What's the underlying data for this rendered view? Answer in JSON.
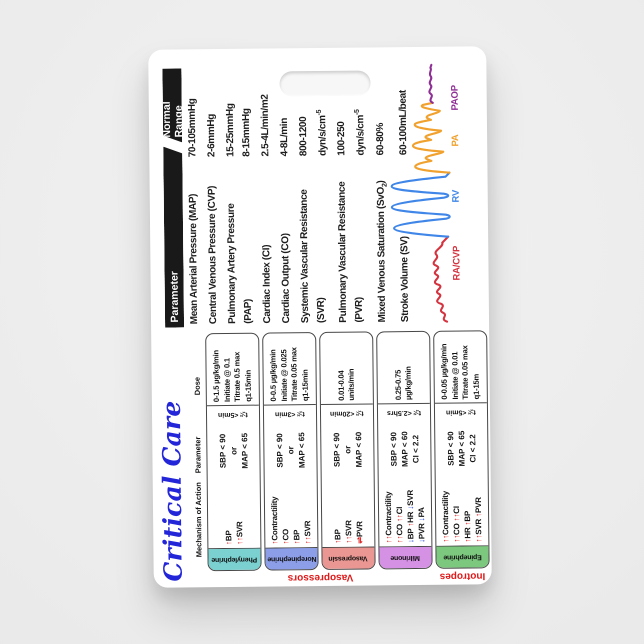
{
  "card": {
    "title": "Critical Care"
  },
  "drug_table": {
    "headers": {
      "mechanism": "Mechanism of Action",
      "parameter": "Parameter",
      "dose": "Dose"
    },
    "groups": {
      "vasopressors": "Vasopressors",
      "inotropes": "Inotropes"
    },
    "drugs": [
      {
        "name": "Phenylephrine",
        "color": "#7bd0d0",
        "mechanism": [
          [
            [
              "↑",
              "r"
            ],
            [
              "BP",
              "k"
            ]
          ],
          [
            [
              "↑↑",
              "r"
            ],
            [
              "SVR",
              "k"
            ]
          ]
        ],
        "parameter": [
          "SBP < 90",
          "or",
          "MAP < 65"
        ],
        "half_life": "t½<5min",
        "dose": [
          "0-1.5 µg/kg/min",
          "Initiate @ 0.1",
          "Titrate 0.5 max",
          "q1-15min"
        ]
      },
      {
        "name": "Norepinephrine",
        "color": "#8d9ee8",
        "mechanism": [
          [
            [
              "↑",
              "r"
            ],
            [
              "Contractility",
              "k"
            ]
          ],
          [
            [
              "↑",
              "r"
            ],
            [
              "CO",
              "k"
            ]
          ],
          [
            [
              "↑",
              "r"
            ],
            [
              "BP",
              "k"
            ]
          ],
          [
            [
              "↑↑",
              "r"
            ],
            [
              "SVR",
              "k"
            ]
          ]
        ],
        "parameter": [
          "SBP < 90",
          "or",
          "MAP < 65"
        ],
        "half_life": "t½<3min",
        "dose": [
          "0-0.5 µg/kg/min",
          "Initiate @ 0.025",
          "Titrate 0.05 max",
          "q1-15min"
        ]
      },
      {
        "name": "Vasopressin",
        "color": "#ea9793",
        "mechanism": [
          [
            [
              "↑",
              "r"
            ],
            [
              "BP",
              "k"
            ]
          ],
          [
            [
              "↑↑",
              "r"
            ],
            [
              "SVR",
              "k"
            ]
          ],
          [
            [
              "⇌",
              "r"
            ],
            [
              "PVR",
              "k"
            ]
          ]
        ],
        "parameter": [
          "SBP < 90",
          "or",
          "MAP < 60"
        ],
        "half_life": "t½<20min",
        "dose": [
          "0.01-0.04",
          "units/min"
        ]
      },
      {
        "name": "Milrinone",
        "color": "#d591e4",
        "mechanism": [
          [
            [
              "↑↑",
              "r"
            ],
            [
              "Contractility",
              "k"
            ]
          ],
          [
            [
              "↑↑",
              "r"
            ],
            [
              "CO ",
              "k"
            ],
            [
              "↑↑",
              "r"
            ],
            [
              "CI",
              "k"
            ]
          ],
          [
            [
              "↓",
              "b"
            ],
            [
              "BP ",
              "k"
            ],
            [
              "↑",
              "r"
            ],
            [
              "HR ",
              "k"
            ],
            [
              "↓",
              "b"
            ],
            [
              "SVR",
              "k"
            ]
          ],
          [
            [
              "↓",
              "b"
            ],
            [
              "PVR ",
              "k"
            ],
            [
              "↓",
              "b"
            ],
            [
              "PA",
              "k"
            ]
          ]
        ],
        "parameter": [
          "SBP < 90",
          "MAP < 60",
          "CI < 2.2"
        ],
        "half_life": "t½<2.5hrs",
        "dose": [
          "0.25-0.75",
          "µg/kg/min"
        ]
      },
      {
        "name": "Epinephrine",
        "color": "#7dc87f",
        "mechanism": [
          [
            [
              "↑↑",
              "r"
            ],
            [
              "Contractility",
              "k"
            ]
          ],
          [
            [
              "↑↑",
              "r"
            ],
            [
              "CO ",
              "k"
            ],
            [
              "↑↑",
              "r"
            ],
            [
              "CI",
              "k"
            ]
          ],
          [
            [
              "↑",
              "r"
            ],
            [
              "HR ",
              "k"
            ],
            [
              "↑",
              "r"
            ],
            [
              "BP",
              "k"
            ]
          ],
          [
            [
              "↑↑",
              "r"
            ],
            [
              "SVR ",
              "k"
            ],
            [
              "↑",
              "r"
            ],
            [
              "PVR",
              "k"
            ]
          ]
        ],
        "parameter": [
          "SBP < 90",
          "MAP < 65",
          "CI < 2.2"
        ],
        "half_life": "t½<5min",
        "dose": [
          "0-0.05 µg/kg/min",
          "Initiate @ 0.01",
          "Titrate 0.05 max",
          "q1-15m"
        ]
      }
    ]
  },
  "param_table": {
    "headers": {
      "parameter": "Parameter",
      "range": "Normal Range"
    },
    "rows": [
      {
        "parameter": [
          "Mean Arterial Pressure (MAP)"
        ],
        "range": [
          "70-105mmHg"
        ]
      },
      {
        "parameter": [
          "Central Venous Pressure (CVP)"
        ],
        "range": [
          "2-6mmHg"
        ]
      },
      {
        "parameter": [
          "Pulmonary Artery Pressure",
          "(PAP)"
        ],
        "range": [
          "15-25mmHg",
          "8-15mmHg"
        ]
      },
      {
        "parameter": [
          "Cardiac Index (CI)"
        ],
        "range": [
          "2.5-4L/min/m2"
        ]
      },
      {
        "parameter": [
          "Cardiac Output (CO)"
        ],
        "range": [
          "4-8L/min"
        ]
      },
      {
        "parameter": [
          "Systemic Vascular Resistance",
          "(SVR)"
        ],
        "range": [
          "800-1200",
          "dyn/s/cm^{-5}"
        ]
      },
      {
        "parameter": [
          "Pulmonary Vascular Resistance",
          "(PVR)"
        ],
        "range": [
          "100-250",
          "dyn/s/cm^{-5}"
        ]
      },
      {
        "parameter": [
          "Mixed Venous Saturation (SvO_{2})"
        ],
        "range": [
          "60-80%"
        ]
      },
      {
        "parameter": [
          "Stroke Volume (SV)"
        ],
        "range": [
          "60-100mL/beat"
        ]
      }
    ]
  },
  "waveform": {
    "labels": [
      {
        "text": "RA/CVP",
        "color": "#d4333f"
      },
      {
        "text": "RV",
        "color": "#3f86e8"
      },
      {
        "text": "PA",
        "color": "#f0a12e"
      },
      {
        "text": "PAOP",
        "color": "#8f2f96"
      }
    ]
  },
  "colors": {
    "title": "#2326d8",
    "accent_red": "#e01818",
    "accent_blue": "#2244dd",
    "header_bar": "#191919"
  }
}
